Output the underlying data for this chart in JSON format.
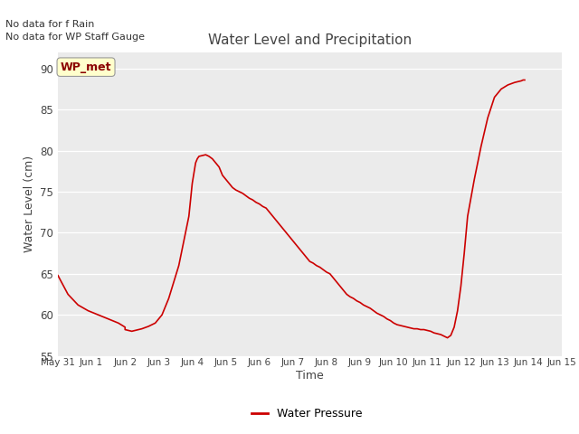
{
  "title": "Water Level and Precipitation",
  "xlabel": "Time",
  "ylabel": "Water Level (cm)",
  "ylim": [
    55,
    92
  ],
  "yticks": [
    55,
    60,
    65,
    70,
    75,
    80,
    85,
    90
  ],
  "background_color": "#ebebeb",
  "line_color": "#cc0000",
  "legend_label": "Water Pressure",
  "annotation_lines": [
    "No data for f Rain",
    "No data for WP Staff Gauge"
  ],
  "wp_met_label": "WP_met",
  "x_tick_labels": [
    "May 31",
    "Jun 1",
    "Jun 2",
    "Jun 3",
    "Jun 4",
    "Jun 5",
    "Jun 6",
    "Jun 7",
    "Jun 8",
    "Jun 9",
    "Jun 10",
    "Jun 11",
    "Jun 12",
    "Jun 13",
    "Jun 14",
    "Jun 15"
  ],
  "x_values": [
    0,
    1,
    2,
    3,
    4,
    5,
    6,
    7,
    8,
    9,
    10,
    11,
    12,
    13,
    14,
    15
  ],
  "y_data_x": [
    0.0,
    0.3,
    0.6,
    0.9,
    1.2,
    1.5,
    1.8,
    2.0,
    2.0,
    2.1,
    2.2,
    2.3,
    2.5,
    2.7,
    2.9,
    3.1,
    3.3,
    3.6,
    3.9,
    4.0,
    4.1,
    4.15,
    4.2,
    4.3,
    4.4,
    4.5,
    4.6,
    4.7,
    4.8,
    4.9,
    5.0,
    5.1,
    5.2,
    5.3,
    5.4,
    5.5,
    5.6,
    5.7,
    5.8,
    5.9,
    6.0,
    6.1,
    6.2,
    6.3,
    6.4,
    6.5,
    6.6,
    6.7,
    6.8,
    6.9,
    7.0,
    7.1,
    7.2,
    7.3,
    7.4,
    7.5,
    7.6,
    7.7,
    7.8,
    7.9,
    8.0,
    8.1,
    8.2,
    8.3,
    8.4,
    8.5,
    8.6,
    8.7,
    8.8,
    8.9,
    9.0,
    9.1,
    9.2,
    9.3,
    9.4,
    9.5,
    9.6,
    9.7,
    9.8,
    9.9,
    10.0,
    10.1,
    10.2,
    10.3,
    10.4,
    10.5,
    10.6,
    10.7,
    10.8,
    10.9,
    11.0,
    11.1,
    11.15,
    11.2,
    11.3,
    11.4,
    11.45,
    11.5,
    11.55,
    11.6,
    11.7,
    11.8,
    11.9,
    12.0,
    12.1,
    12.2,
    12.4,
    12.6,
    12.8,
    13.0,
    13.2,
    13.4,
    13.6,
    13.8,
    13.85,
    13.9
  ],
  "y_data_y": [
    64.8,
    62.5,
    61.2,
    60.5,
    60.0,
    59.5,
    59.0,
    58.5,
    58.2,
    58.1,
    58.0,
    58.1,
    58.3,
    58.6,
    59.0,
    60.0,
    62.0,
    66.0,
    72.0,
    76.0,
    78.5,
    79.0,
    79.3,
    79.4,
    79.5,
    79.3,
    79.0,
    78.5,
    78.0,
    77.0,
    76.5,
    76.0,
    75.5,
    75.2,
    75.0,
    74.8,
    74.5,
    74.2,
    74.0,
    73.7,
    73.5,
    73.2,
    73.0,
    72.5,
    72.0,
    71.5,
    71.0,
    70.5,
    70.0,
    69.5,
    69.0,
    68.5,
    68.0,
    67.5,
    67.0,
    66.5,
    66.3,
    66.0,
    65.8,
    65.5,
    65.2,
    65.0,
    64.5,
    64.0,
    63.5,
    63.0,
    62.5,
    62.2,
    62.0,
    61.7,
    61.5,
    61.2,
    61.0,
    60.8,
    60.5,
    60.2,
    60.0,
    59.8,
    59.5,
    59.3,
    59.0,
    58.8,
    58.7,
    58.6,
    58.5,
    58.4,
    58.3,
    58.3,
    58.2,
    58.2,
    58.1,
    58.0,
    57.9,
    57.8,
    57.7,
    57.6,
    57.5,
    57.4,
    57.3,
    57.2,
    57.5,
    58.5,
    60.5,
    63.5,
    67.5,
    72.0,
    76.5,
    80.5,
    84.0,
    86.5,
    87.5,
    88.0,
    88.3,
    88.5,
    88.6,
    88.6
  ]
}
